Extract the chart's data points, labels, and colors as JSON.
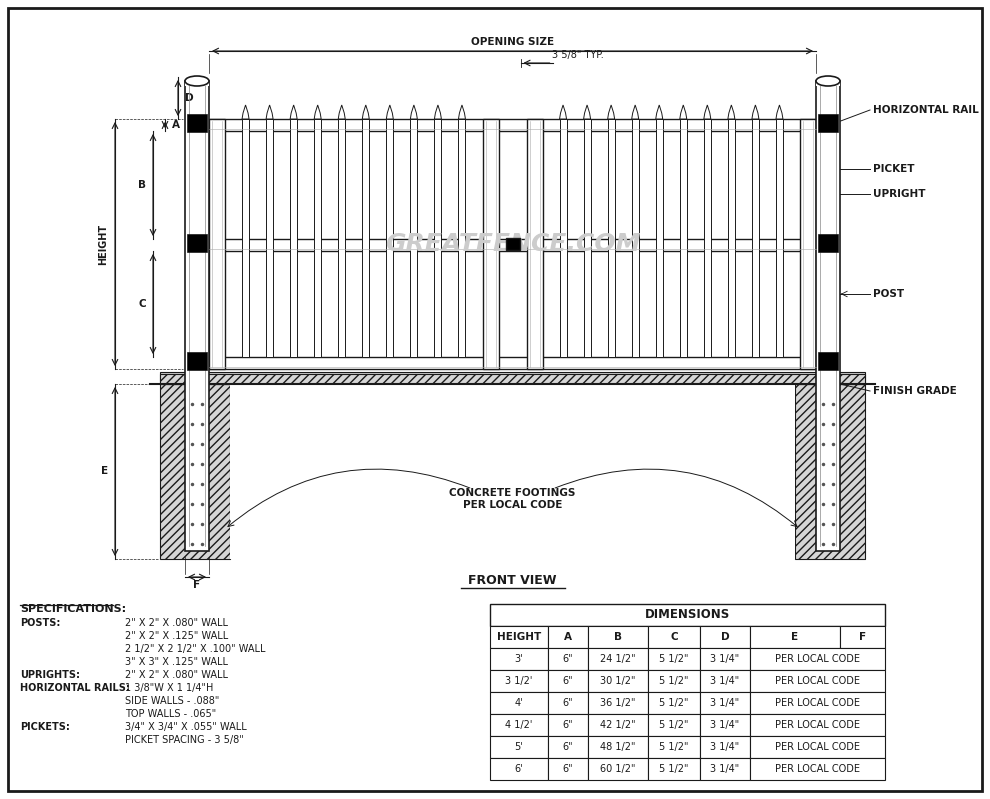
{
  "bg_color": "#ffffff",
  "line_color": "#1a1a1a",
  "front_view_label": "FRONT VIEW",
  "opening_size_label": "OPENING SIZE",
  "typ_label": "3 5/8\" TYP.",
  "watermark": "GREATFENCE.COM",
  "labels": {
    "horizontal_rail": "HORIZONTAL RAIL",
    "picket": "PICKET",
    "upright": "UPRIGHT",
    "post": "POST",
    "finish_grade": "FINISH GRADE",
    "concrete": "CONCRETE FOOTINGS\nPER LOCAL CODE",
    "height": "HEIGHT"
  },
  "specs_title": "SPECIFICATIONS:",
  "specs": [
    [
      "POSTS:",
      "2\" X 2\" X .080\" WALL"
    ],
    [
      "",
      "2\" X 2\" X .125\" WALL"
    ],
    [
      "",
      "2 1/2\" X 2 1/2\" X .100\" WALL"
    ],
    [
      "",
      "3\" X 3\" X .125\" WALL"
    ],
    [
      "UPRIGHTS:",
      "2\" X 2\" X .080\" WALL"
    ],
    [
      "HORIZONTAL RAILS:",
      "1 3/8\"W X 1 1/4\"H"
    ],
    [
      "",
      "SIDE WALLS - .088\""
    ],
    [
      "",
      "TOP WALLS - .065\""
    ],
    [
      "PICKETS:",
      "3/4\" X 3/4\" X .055\" WALL"
    ],
    [
      "",
      "PICKET SPACING - 3 5/8\""
    ]
  ],
  "table_title": "DIMENSIONS",
  "table_headers": [
    "HEIGHT",
    "A",
    "B",
    "C",
    "D",
    "E",
    "F"
  ],
  "table_rows": [
    [
      "3'",
      "6\"",
      "24 1/2\"",
      "5 1/2\"",
      "3 1/4\"",
      "PER LOCAL CODE",
      ""
    ],
    [
      "3 1/2'",
      "6\"",
      "30 1/2\"",
      "5 1/2\"",
      "3 1/4\"",
      "PER LOCAL CODE",
      ""
    ],
    [
      "4'",
      "6\"",
      "36 1/2\"",
      "5 1/2\"",
      "3 1/4\"",
      "PER LOCAL CODE",
      ""
    ],
    [
      "4 1/2'",
      "6\"",
      "42 1/2\"",
      "5 1/2\"",
      "3 1/4\"",
      "PER LOCAL CODE",
      ""
    ],
    [
      "5'",
      "6\"",
      "48 1/2\"",
      "5 1/2\"",
      "3 1/4\"",
      "PER LOCAL CODE",
      ""
    ],
    [
      "6'",
      "6\"",
      "60 1/2\"",
      "5 1/2\"",
      "3 1/4\"",
      "PER LOCAL CODE",
      ""
    ]
  ]
}
